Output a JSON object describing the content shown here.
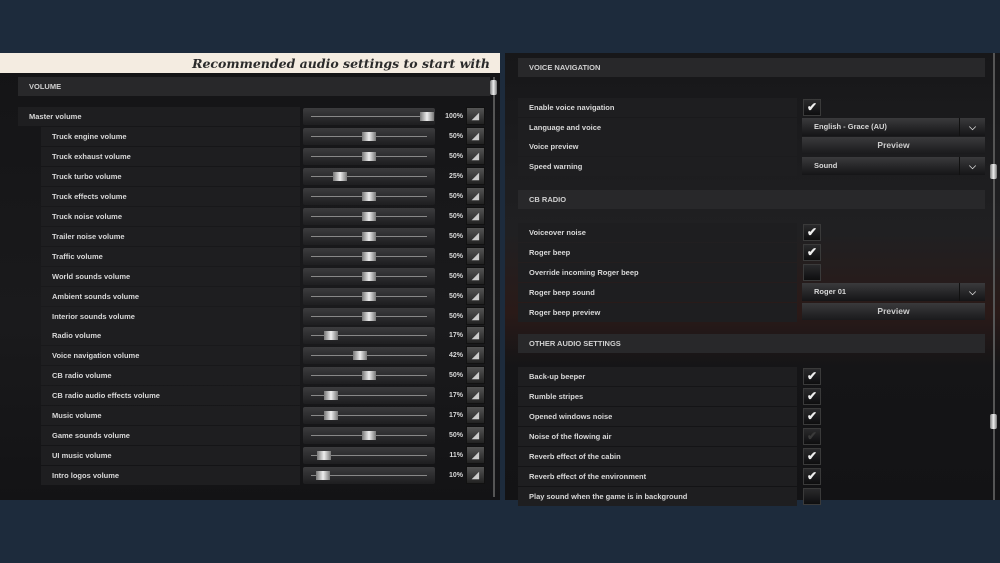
{
  "banner": "Recommended audio settings to start with",
  "volume": {
    "title": "VOLUME",
    "mute_icon": "speaker-icon",
    "items": [
      {
        "label": "Master volume",
        "value": 100,
        "display": "100%",
        "master": true
      },
      {
        "label": "Truck engine volume",
        "value": 50,
        "display": "50%"
      },
      {
        "label": "Truck exhaust volume",
        "value": 50,
        "display": "50%"
      },
      {
        "label": "Truck turbo volume",
        "value": 25,
        "display": "25%"
      },
      {
        "label": "Truck effects volume",
        "value": 50,
        "display": "50%"
      },
      {
        "label": "Truck noise volume",
        "value": 50,
        "display": "50%"
      },
      {
        "label": "Trailer noise volume",
        "value": 50,
        "display": "50%"
      },
      {
        "label": "Traffic volume",
        "value": 50,
        "display": "50%"
      },
      {
        "label": "World sounds volume",
        "value": 50,
        "display": "50%"
      },
      {
        "label": "Ambient sounds volume",
        "value": 50,
        "display": "50%"
      },
      {
        "label": "Interior sounds volume",
        "value": 50,
        "display": "50%"
      },
      {
        "label": "Radio volume",
        "value": 17,
        "display": "17%"
      },
      {
        "label": "Voice navigation volume",
        "value": 42,
        "display": "42%"
      },
      {
        "label": "CB radio volume",
        "value": 50,
        "display": "50%"
      },
      {
        "label": "CB radio audio effects volume",
        "value": 17,
        "display": "17%"
      },
      {
        "label": "Music volume",
        "value": 17,
        "display": "17%"
      },
      {
        "label": "Game sounds volume",
        "value": 50,
        "display": "50%"
      },
      {
        "label": "UI music volume",
        "value": 11,
        "display": "11%"
      },
      {
        "label": "Intro logos volume",
        "value": 10,
        "display": "10%"
      }
    ]
  },
  "sections": [
    {
      "title": "VOICE NAVIGATION",
      "items": [
        {
          "label": "Enable voice navigation",
          "type": "checkbox",
          "checked": true
        },
        {
          "label": "Language and voice",
          "type": "dropdown",
          "value": "English - Grace (AU)"
        },
        {
          "label": "Voice preview",
          "type": "button",
          "value": "Preview"
        },
        {
          "label": "Speed warning",
          "type": "dropdown",
          "value": "Sound"
        }
      ]
    },
    {
      "title": "CB RADIO",
      "items": [
        {
          "label": "Voiceover noise",
          "type": "checkbox",
          "checked": true
        },
        {
          "label": "Roger beep",
          "type": "checkbox",
          "checked": true
        },
        {
          "label": "Override incoming Roger beep",
          "type": "checkbox",
          "checked": false
        },
        {
          "label": "Roger beep sound",
          "type": "dropdown",
          "value": "Roger 01"
        },
        {
          "label": "Roger beep preview",
          "type": "button",
          "value": "Preview"
        }
      ]
    },
    {
      "title": "OTHER AUDIO SETTINGS",
      "items": [
        {
          "label": "Back-up beeper",
          "type": "checkbox",
          "checked": true
        },
        {
          "label": "Rumble stripes",
          "type": "checkbox",
          "checked": true
        },
        {
          "label": "Opened windows noise",
          "type": "checkbox",
          "checked": true
        },
        {
          "label": "Noise of the flowing air",
          "type": "checkbox",
          "checked": true,
          "disabled": true
        },
        {
          "label": "Reverb effect of the cabin",
          "type": "checkbox",
          "checked": true
        },
        {
          "label": "Reverb effect of the environment",
          "type": "checkbox",
          "checked": true
        },
        {
          "label": "Play sound when the game is in background",
          "type": "checkbox",
          "checked": false
        }
      ]
    }
  ]
}
